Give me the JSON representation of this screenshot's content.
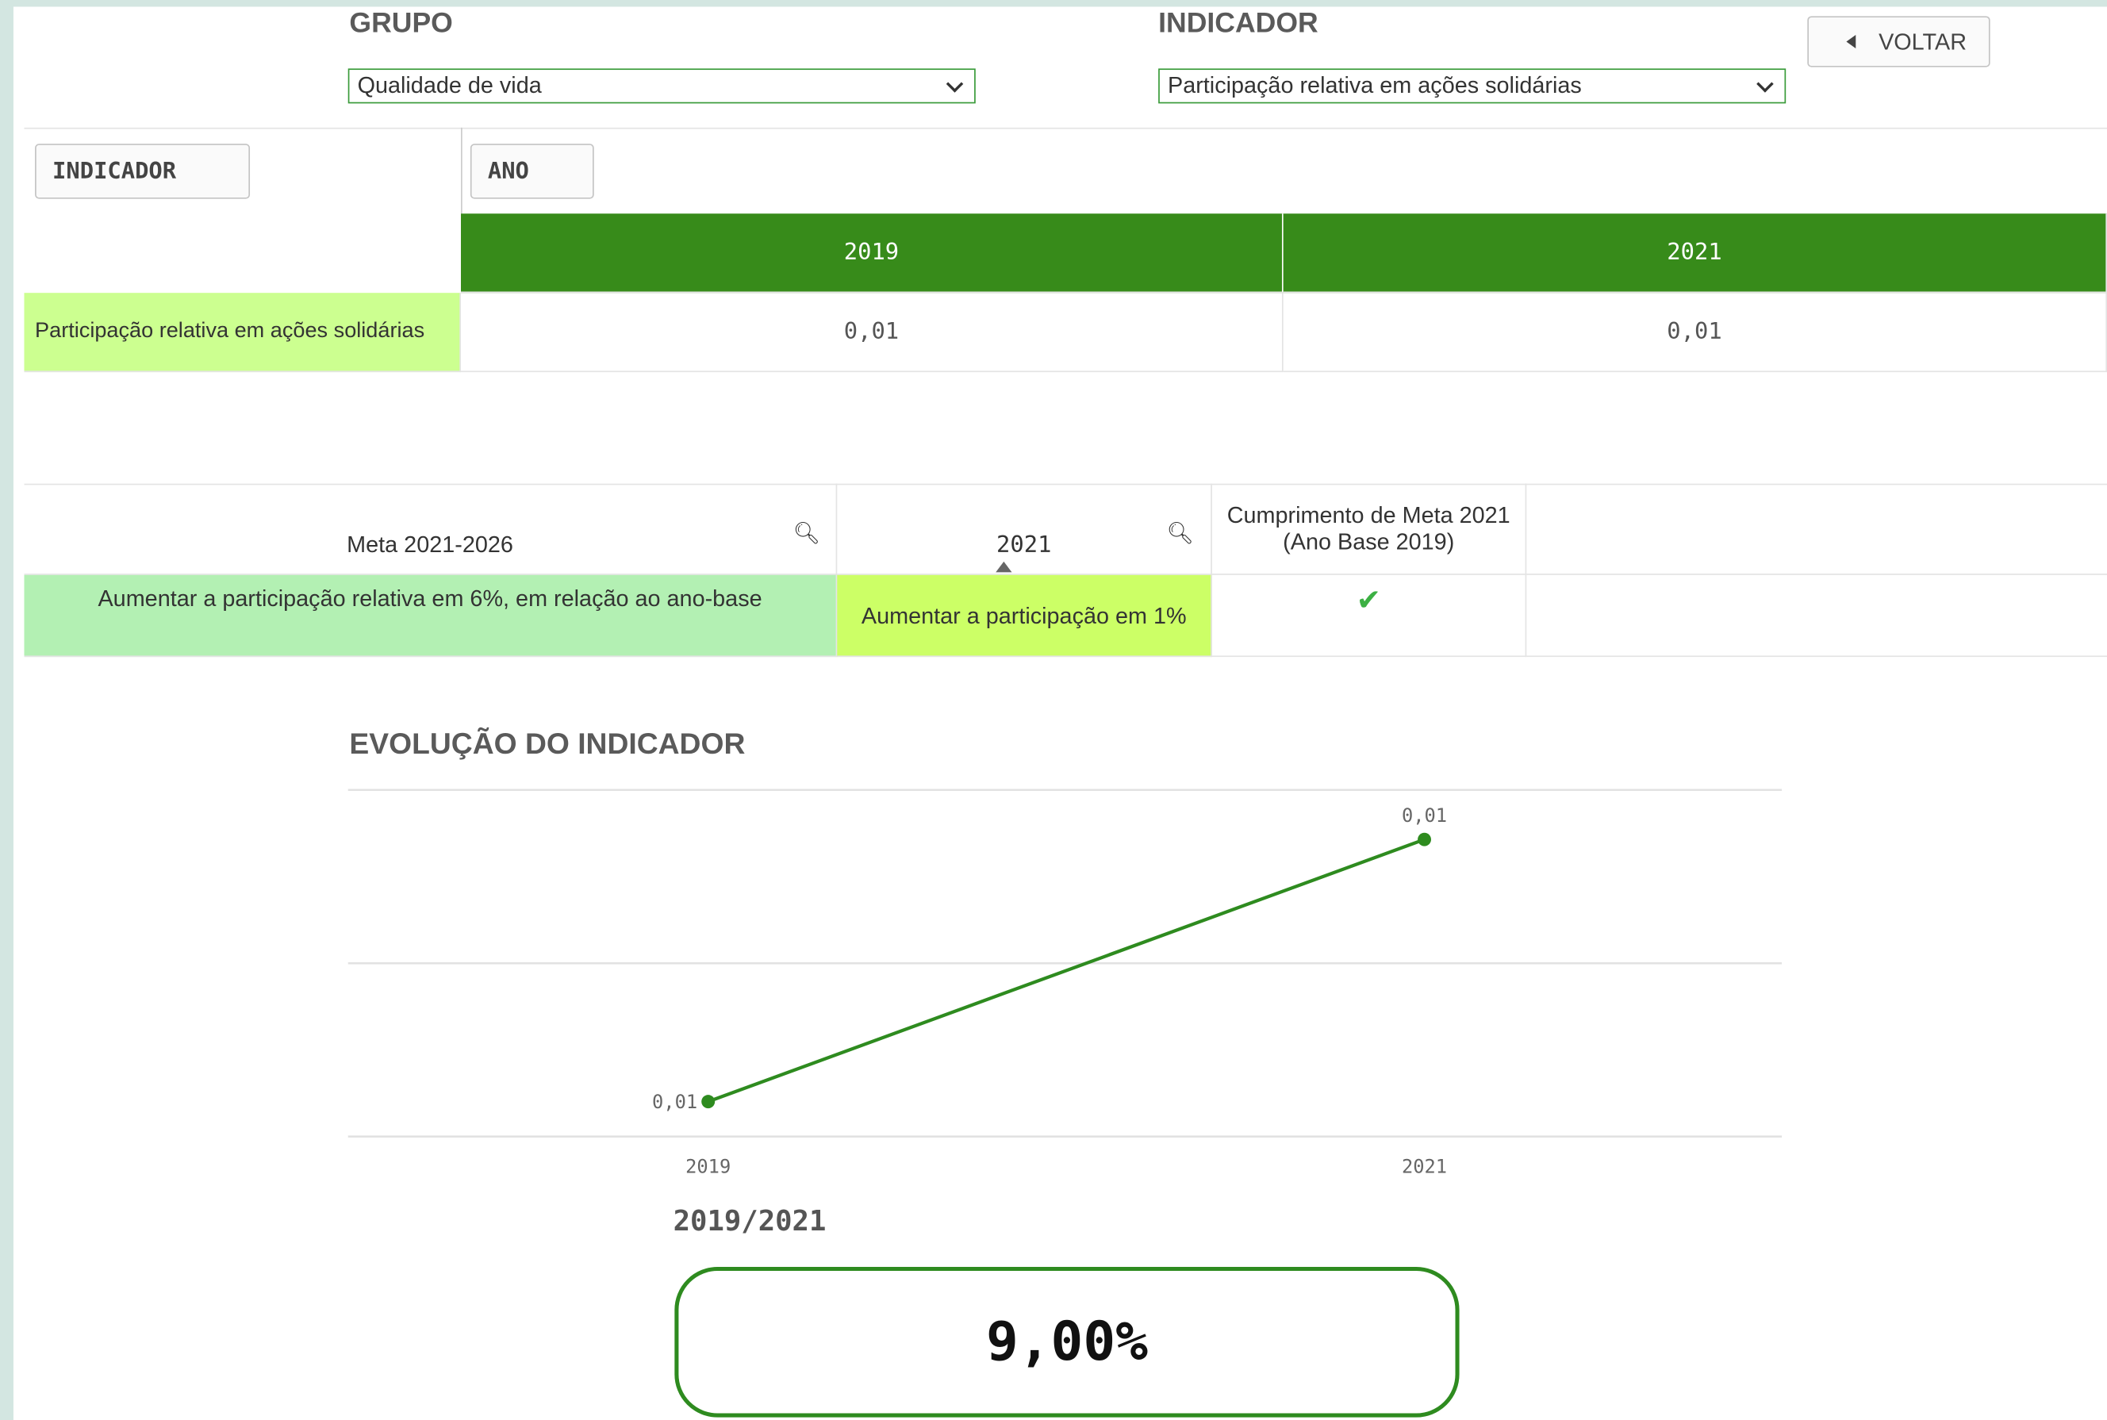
{
  "filters": {
    "grupo": {
      "label": "GRUPO",
      "value": "Qualidade de vida"
    },
    "indicador": {
      "label": "INDICADOR",
      "value": "Participação relativa em ações solidárias"
    }
  },
  "back_button": "VOLTAR",
  "pivot_table": {
    "row_header": "INDICADOR",
    "column_header": "ANO",
    "columns": [
      "2019",
      "2021"
    ],
    "rows": [
      {
        "label": "Participação relativa em ações solidárias",
        "cells": [
          "0,01",
          "0,01"
        ]
      }
    ]
  },
  "goal_table": {
    "headers": [
      "Meta 2021-2026",
      "2021",
      "Cumprimento de Meta 2021 (Ano Base 2019)"
    ],
    "rows": [
      [
        "Aumentar a participação relativa em 6%, em relação ao ano-base",
        "Aumentar a participação em 1%"
      ]
    ]
  },
  "chart_data": {
    "type": "line",
    "title": "EVOLUÇÃO DO INDICADOR",
    "categories": [
      "2019",
      "2021"
    ],
    "values": [
      0.01,
      0.0109
    ],
    "value_labels": [
      "0,01",
      "0,01"
    ],
    "color": "#2e8b1f",
    "ylim": [
      0.00988,
      0.01107
    ]
  },
  "kpi": {
    "label": "2019/2021",
    "value": "9,00%"
  }
}
